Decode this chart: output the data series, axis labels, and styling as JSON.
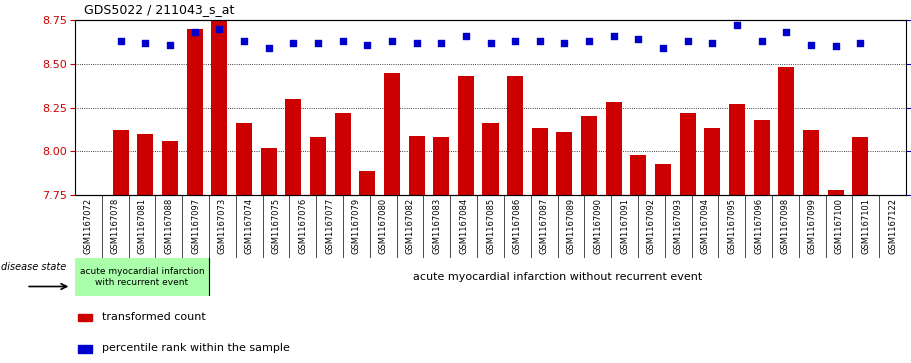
{
  "title": "GDS5022 / 211043_s_at",
  "samples": [
    "GSM1167072",
    "GSM1167078",
    "GSM1167081",
    "GSM1167088",
    "GSM1167097",
    "GSM1167073",
    "GSM1167074",
    "GSM1167075",
    "GSM1167076",
    "GSM1167077",
    "GSM1167079",
    "GSM1167080",
    "GSM1167082",
    "GSM1167083",
    "GSM1167084",
    "GSM1167085",
    "GSM1167086",
    "GSM1167087",
    "GSM1167089",
    "GSM1167090",
    "GSM1167091",
    "GSM1167092",
    "GSM1167093",
    "GSM1167094",
    "GSM1167095",
    "GSM1167096",
    "GSM1167098",
    "GSM1167099",
    "GSM1167100",
    "GSM1167101",
    "GSM1167122"
  ],
  "bar_values": [
    8.12,
    8.1,
    8.06,
    8.7,
    8.75,
    8.16,
    8.02,
    8.3,
    8.08,
    8.22,
    7.89,
    8.45,
    8.09,
    8.08,
    8.43,
    8.16,
    8.43,
    8.13,
    8.11,
    8.2,
    8.28,
    7.98,
    7.93,
    8.22,
    8.13,
    8.27,
    8.18,
    8.48,
    8.12,
    7.78,
    8.08
  ],
  "percentile_values": [
    88,
    87,
    86,
    93,
    95,
    88,
    84,
    87,
    87,
    88,
    86,
    88,
    87,
    87,
    91,
    87,
    88,
    88,
    87,
    88,
    91,
    89,
    84,
    88,
    87,
    97,
    88,
    93,
    86,
    85,
    87
  ],
  "ylim_left": [
    7.75,
    8.75
  ],
  "ylim_right": [
    0,
    100
  ],
  "yticks_left": [
    7.75,
    8.0,
    8.25,
    8.5,
    8.75
  ],
  "yticks_right": [
    0,
    25,
    50,
    75,
    100
  ],
  "bar_color": "#cc0000",
  "dot_color": "#0000cc",
  "bar_bottom": 7.75,
  "group1_count": 5,
  "group1_label": "acute myocardial infarction\nwith recurrent event",
  "group2_label": "acute myocardial infarction without recurrent event",
  "group1_color": "#aaffaa",
  "group2_color": "#55cc55",
  "disease_state_label": "disease state",
  "legend1": "transformed count",
  "legend2": "percentile rank within the sample",
  "xticklabel_color": "#222222",
  "xbg_color": "#c8c8c8"
}
